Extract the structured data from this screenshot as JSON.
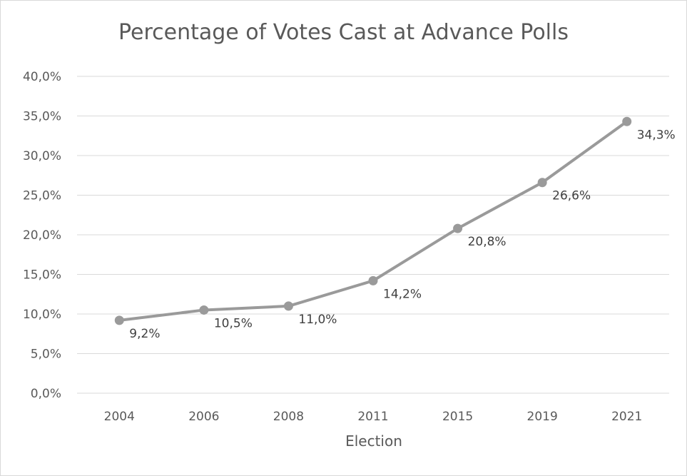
{
  "chart_data": {
    "type": "line",
    "title": "Percentage of Votes Cast at Advance Polls",
    "xlabel": "Election",
    "ylabel": "",
    "categories": [
      "2004",
      "2006",
      "2008",
      "2011",
      "2015",
      "2019",
      "2021"
    ],
    "series": [
      {
        "values": [
          9.2,
          10.5,
          11.0,
          14.2,
          20.8,
          26.6,
          34.3
        ],
        "data_labels": [
          "9,2%",
          "10,5%",
          "11,0%",
          "14,2%",
          "20,8%",
          "26,6%",
          "34,3%"
        ],
        "color": "#9a9a9a"
      }
    ],
    "ylim": [
      0,
      40
    ],
    "yticks": [
      0,
      5,
      10,
      15,
      20,
      25,
      30,
      35,
      40
    ],
    "ytick_labels": [
      "0,0%",
      "5,0%",
      "10,0%",
      "15,0%",
      "20,0%",
      "25,0%",
      "30,0%",
      "35,0%",
      "40,0%"
    ],
    "grid": true,
    "legend": "none"
  }
}
